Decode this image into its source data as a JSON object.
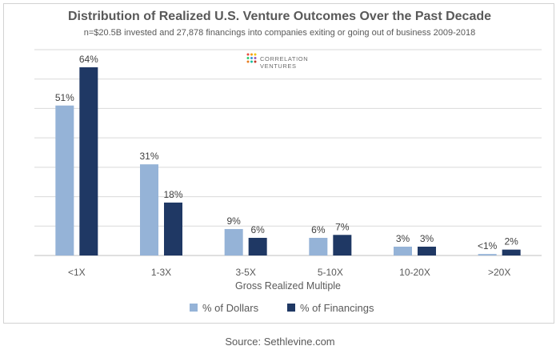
{
  "title": "Distribution of Realized U.S. Venture Outcomes Over the Past Decade",
  "subtitle": "n=$20.5B invested and 27,878 financings into companies exiting or going out of business 2009-2018",
  "logo": {
    "line1": "CORRELATION",
    "line2": "VENTURES",
    "dot_colors": [
      "#e84c3d",
      "#f39c12",
      "#f1c40f",
      "#2ecc71",
      "#3498db",
      "#9b59b6",
      "#e67e22",
      "#1abc9c",
      "#c0392b"
    ]
  },
  "source": "Source: Sethlevine.com",
  "colors": {
    "dollars": "#95b3d7",
    "financings": "#1f3864",
    "grid": "#d9d9d9",
    "text": "#595959"
  },
  "chart_data": {
    "type": "bar",
    "title": "Distribution of Realized U.S. Venture Outcomes Over the Past Decade",
    "xlabel": "Gross Realized Multiple",
    "ylabel": "",
    "ylim": [
      0,
      70
    ],
    "grid": true,
    "legend_position": "bottom",
    "categories": [
      "<1X",
      "1-3X",
      "3-5X",
      "5-10X",
      "10-20X",
      ">20X"
    ],
    "series": [
      {
        "name": "% of Dollars",
        "values": [
          51,
          31,
          9,
          6,
          3,
          0.5
        ],
        "labels": [
          "51%",
          "31%",
          "9%",
          "6%",
          "3%",
          "<1%"
        ]
      },
      {
        "name": "% of Financings",
        "values": [
          64,
          18,
          6,
          7,
          3,
          2
        ],
        "labels": [
          "64%",
          "18%",
          "6%",
          "7%",
          "3%",
          "2%"
        ]
      }
    ]
  }
}
